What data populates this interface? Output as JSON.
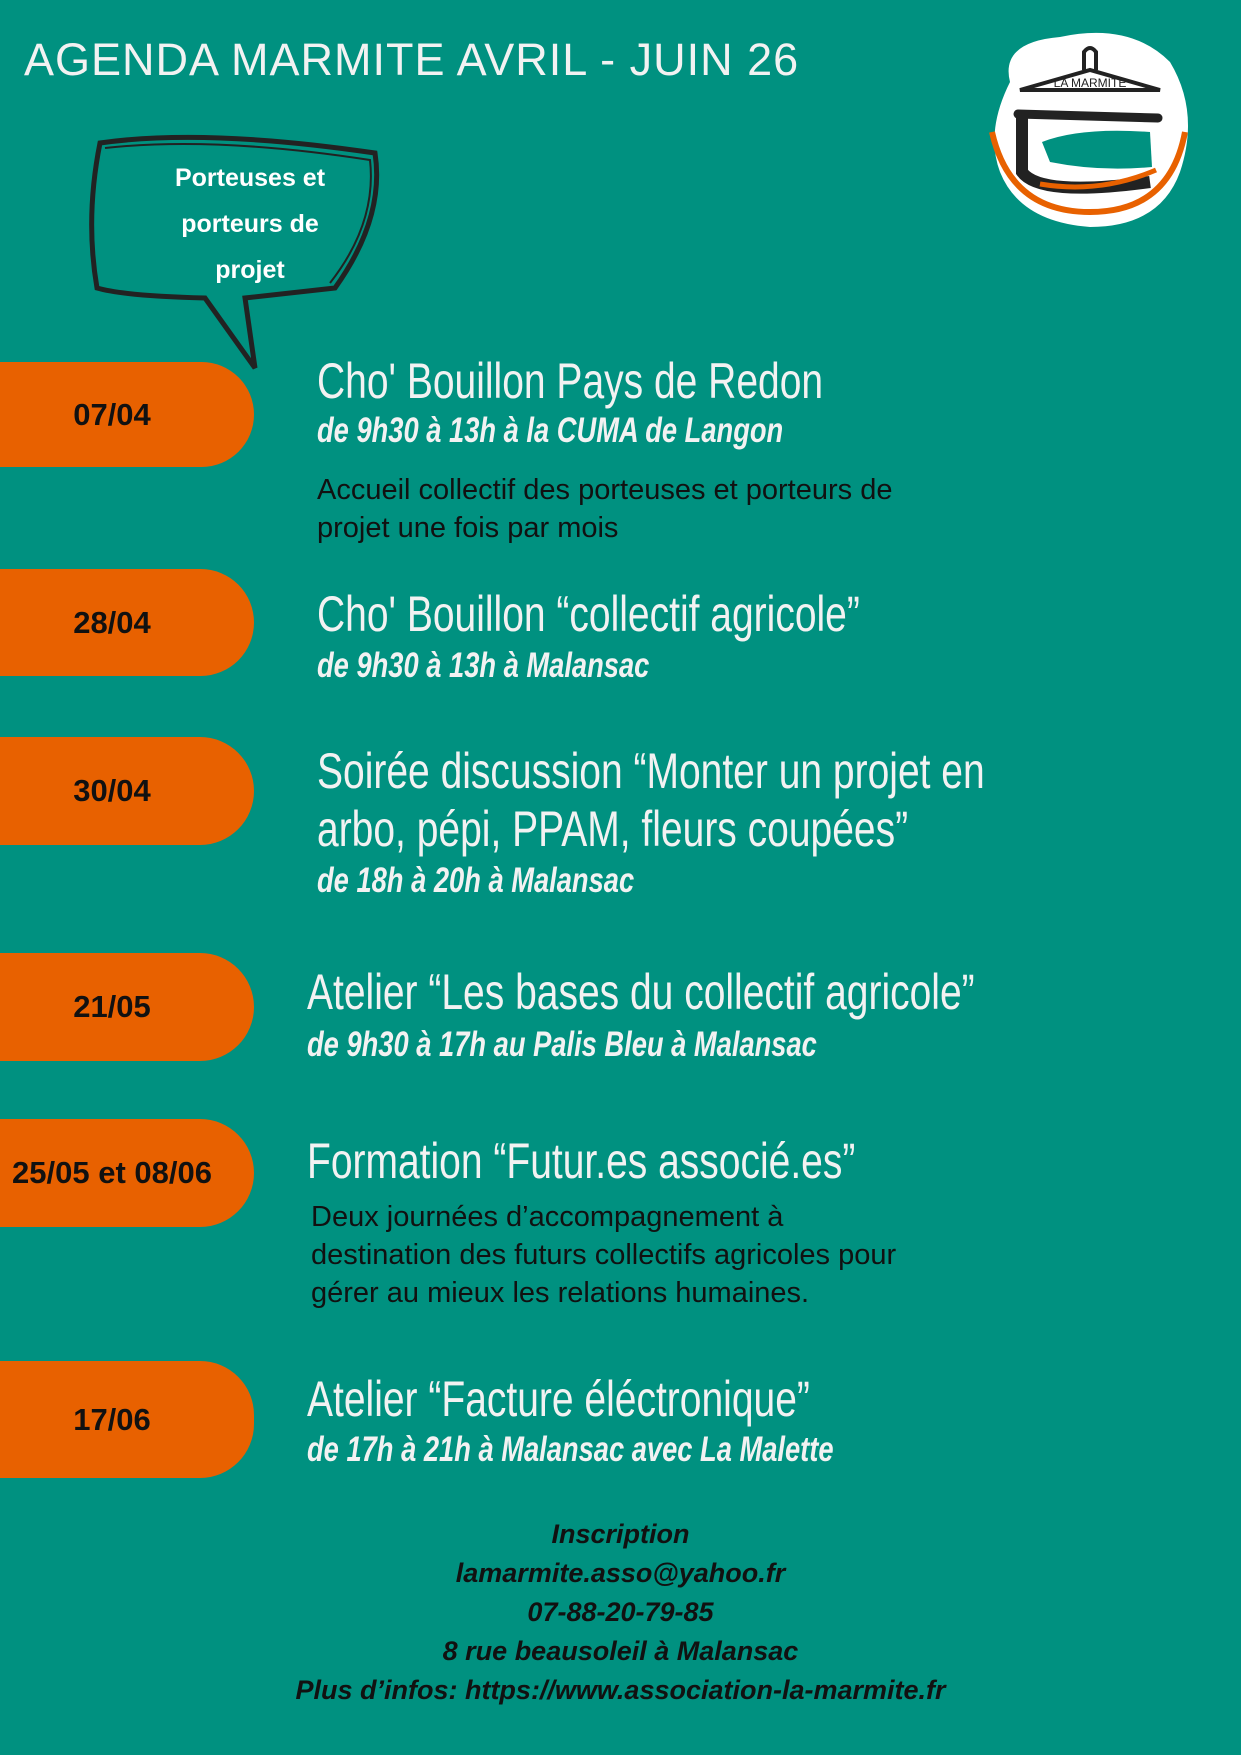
{
  "header": {
    "title": "AGENDA MARMITE AVRIL - JUIN 26",
    "logo_text": "LA MARMITE"
  },
  "bubble": {
    "lines": [
      "Porteuses et",
      "porteurs de",
      "projet"
    ]
  },
  "colors": {
    "background": "#009180",
    "accent": "#e86100",
    "text": "#f2f2f2"
  },
  "events": [
    {
      "date": "07/04",
      "title": [
        "Cho' Bouillon Pays de Redon"
      ],
      "subtitle": "de 9h30 à 13h à la CUMA de Langon",
      "description": [
        "Accueil collectif des porteuses et porteurs de",
        "projet une fois par mois"
      ]
    },
    {
      "date": "28/04",
      "title": [
        "Cho' Bouillon “collectif agricole”"
      ],
      "subtitle": "de 9h30 à 13h à Malansac"
    },
    {
      "date": "30/04",
      "title": [
        "Soirée discussion “Monter un projet en",
        "arbo, pépi, PPAM, fleurs coupées”"
      ],
      "subtitle": "de 18h à 20h à Malansac"
    },
    {
      "date": "21/05",
      "title": [
        "Atelier “Les bases du collectif agricole”"
      ],
      "subtitle": "de 9h30 à 17h au Palis Bleu à Malansac"
    },
    {
      "date": "25/05 et 08/06",
      "title": [
        "Formation “Futur.es associé.es”"
      ],
      "description": [
        "Deux journées d’accompagnement à",
        "destination des futurs collectifs agricoles pour",
        "gérer au mieux les relations humaines."
      ]
    },
    {
      "date": "17/06",
      "title": [
        "Atelier “Facture éléctronique”"
      ],
      "subtitle": "de 17h à 21h à Malansac avec La Malette"
    }
  ],
  "footer": {
    "lines": [
      "Inscription",
      "lamarmite.asso@yahoo.fr",
      "07-88-20-79-85",
      "8 rue beausoleil à Malansac",
      "Plus d’infos: https://www.association-la-marmite.fr"
    ]
  }
}
